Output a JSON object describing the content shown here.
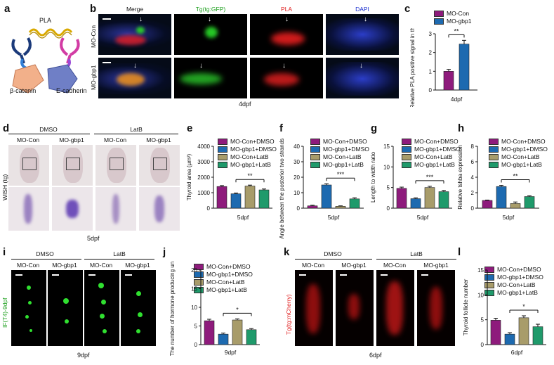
{
  "panel_a": {
    "letter": "a",
    "pla": "PLA",
    "beta_catenin": "β-catenin",
    "e_cadherin": "E-cadherin"
  },
  "panel_b": {
    "letter": "b",
    "headers": [
      "Merge",
      "Tg(tg:GFP)",
      "PLA",
      "DAPI"
    ],
    "header_colors": [
      "#111111",
      "#1a9e1a",
      "#e02020",
      "#1a2fcf"
    ],
    "rows": [
      "MO-Con",
      "MO-gbp1"
    ],
    "footer": "4dpf"
  },
  "panel_c": {
    "letter": "c",
    "legend": [
      "MO-Con",
      "MO-gbp1"
    ],
    "ylabel": "Relative PLA positive signal in thyroid",
    "xlabel": "4dpf",
    "sig": "**"
  },
  "panel_d": {
    "letter": "d",
    "groups": [
      "DMSO",
      "LatB"
    ],
    "cols": [
      "MO-Con",
      "MO-gbp1",
      "MO-Con",
      "MO-gbp1"
    ],
    "side": "WISH (tg)",
    "footer": "5dpf"
  },
  "panel_i": {
    "letter": "i",
    "groups": [
      "DMSO",
      "LatB"
    ],
    "cols": [
      "MO-Con",
      "MO-gbp1",
      "MO-Con",
      "MO-gbp1"
    ],
    "side": "IF(T4)-9dpf",
    "footer": "9dpf"
  },
  "panel_k": {
    "letter": "k",
    "groups": [
      "DMSO",
      "LatB"
    ],
    "cols": [
      "MO-Con",
      "MO-gbp1",
      "MO-Con",
      "MO-gbp1"
    ],
    "side": "Tg(tg:mCherry)",
    "footer": "6dpf"
  },
  "legend4": [
    "MO-Con+DMSO",
    "MO-gbp1+DMSO",
    "MO-Con+LatB",
    "MO-gbp1+LatB"
  ],
  "colors": {
    "purple": "#8e1b7c",
    "blue": "#1d6ab0",
    "khaki": "#a89c6a",
    "green": "#1f9a6b"
  },
  "chart_data": [
    {
      "id": "c",
      "type": "bar",
      "categories": [
        "MO-Con",
        "MO-gbp1"
      ],
      "values": [
        1.0,
        2.45
      ],
      "errors": [
        0.1,
        0.2
      ],
      "xlabel": "4dpf",
      "ylabel": "Relative PLA positive signal in thyroid",
      "ylim": [
        0,
        3
      ],
      "yticks": [
        0,
        1,
        2,
        3
      ],
      "sig": "**"
    },
    {
      "id": "e",
      "type": "bar",
      "categories": [
        "MO-Con+DMSO",
        "MO-gbp1+DMSO",
        "MO-Con+LatB",
        "MO-gbp1+LatB"
      ],
      "values": [
        1400,
        930,
        1430,
        1180
      ],
      "errors": [
        60,
        50,
        60,
        60
      ],
      "xlabel": "5dpf",
      "ylabel": "Thyroid area (μm²)",
      "ylim": [
        0,
        4000
      ],
      "yticks": [
        0,
        1000,
        2000,
        3000,
        4000
      ],
      "sig": "**"
    },
    {
      "id": "f",
      "type": "bar",
      "categories": [
        "MO-Con+DMSO",
        "MO-gbp1+DMSO",
        "MO-Con+LatB",
        "MO-gbp1+LatB"
      ],
      "values": [
        1.5,
        15,
        1.2,
        6
      ],
      "errors": [
        0.4,
        0.8,
        0.3,
        0.7
      ],
      "xlabel": "5dpf",
      "ylabel": "Angle between the posterior two strands (degree)",
      "ylim": [
        0,
        40
      ],
      "yticks": [
        0,
        10,
        20,
        30,
        40
      ],
      "sig": "***"
    },
    {
      "id": "g",
      "type": "bar",
      "categories": [
        "MO-Con+DMSO",
        "MO-gbp1+DMSO",
        "MO-Con+LatB",
        "MO-gbp1+LatB"
      ],
      "values": [
        4.8,
        2.3,
        5.0,
        4.0
      ],
      "errors": [
        0.3,
        0.2,
        0.3,
        0.3
      ],
      "xlabel": "5dpf",
      "ylabel": "Length to width ratio",
      "ylim": [
        0,
        15
      ],
      "yticks": [
        0,
        5,
        10,
        15
      ],
      "sig": "***"
    },
    {
      "id": "h",
      "type": "bar",
      "categories": [
        "MO-Con+DMSO",
        "MO-gbp1+DMSO",
        "MO-Con+LatB",
        "MO-gbp1+LatB"
      ],
      "values": [
        1.0,
        2.8,
        0.6,
        1.5
      ],
      "errors": [
        0.05,
        0.15,
        0.2,
        0.1
      ],
      "xlabel": "5dpf",
      "ylabel": "Relative tshba expression",
      "ylim": [
        0,
        8
      ],
      "yticks": [
        0,
        2,
        4,
        6,
        8
      ],
      "sig": "**"
    },
    {
      "id": "j",
      "type": "bar",
      "categories": [
        "MO-Con+DMSO",
        "MO-gbp1+DMSO",
        "MO-Con+LatB",
        "MO-gbp1+LatB"
      ],
      "values": [
        6.4,
        2.8,
        6.6,
        4.0
      ],
      "errors": [
        0.4,
        0.3,
        0.3,
        0.3
      ],
      "xlabel": "9dpf",
      "ylabel": "The number of hormone producing unit",
      "ylim": [
        0,
        20
      ],
      "yticks": [
        0,
        5,
        10,
        15,
        20
      ],
      "sig": "*"
    },
    {
      "id": "l",
      "type": "bar",
      "categories": [
        "MO-Con+DMSO",
        "MO-gbp1+DMSO",
        "MO-Con+LatB",
        "MO-gbp1+LatB"
      ],
      "values": [
        4.9,
        2.1,
        5.4,
        3.6
      ],
      "errors": [
        0.4,
        0.3,
        0.4,
        0.5
      ],
      "xlabel": "6dpf",
      "ylabel": "Thyroid follicle number",
      "ylim": [
        0,
        15
      ],
      "yticks": [
        0,
        5,
        10,
        15
      ],
      "sig": "*"
    }
  ]
}
